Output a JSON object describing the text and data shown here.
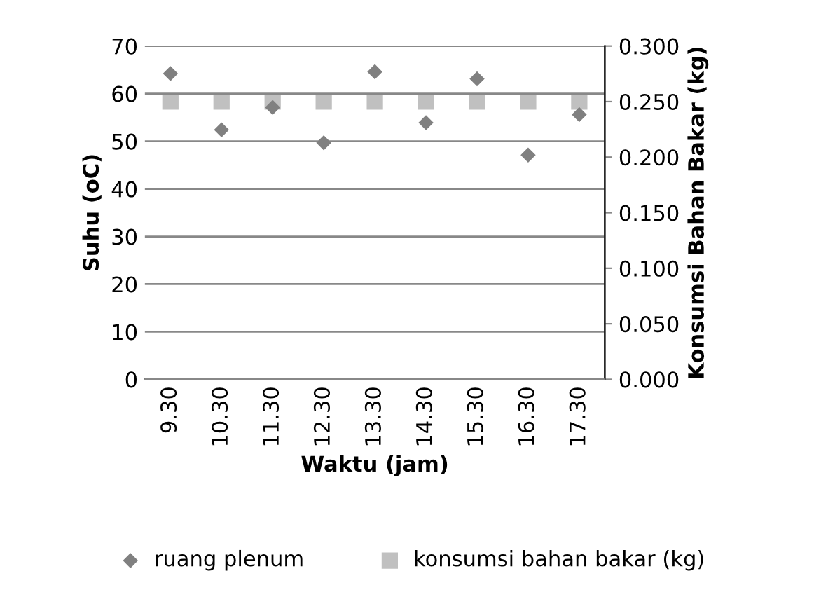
{
  "chart_data": {
    "type": "scatter",
    "xlabel": "Waktu (jam)",
    "ylabel": "Suhu (oC)",
    "y2label": "Konsumsi Bahan Bakar (kg)",
    "categories": [
      "9.30",
      "10.30",
      "11.30",
      "12.30",
      "13.30",
      "14.30",
      "15.30",
      "16.30",
      "17.30"
    ],
    "series": [
      {
        "name": "ruang plenum",
        "color": "#808080",
        "marker": "diamond",
        "values": [
          64.2,
          52.4,
          57.1,
          49.7,
          64.6,
          53.9,
          63.1,
          47.1,
          55.6
        ]
      },
      {
        "name": "konsumsi bahan bakar (kg)",
        "color": "#c0c0c0",
        "marker": "square",
        "axis": "y2",
        "values": [
          0.25,
          0.25,
          0.25,
          0.25,
          0.25,
          0.25,
          0.25,
          0.25,
          0.25
        ]
      }
    ],
    "ylim": [
      0,
      70
    ],
    "yticks": [
      0,
      10,
      20,
      30,
      40,
      50,
      60,
      70
    ],
    "y2lim": [
      0,
      0.3
    ],
    "y2ticks": [
      {
        "value": 0,
        "label": "0.000"
      },
      {
        "value": 0.05,
        "label": "0.050"
      },
      {
        "value": 0.1,
        "label": "0.100"
      },
      {
        "value": 0.15,
        "label": "0.150"
      },
      {
        "value": 0.2,
        "label": "0.200"
      },
      {
        "value": 0.25,
        "label": "0.250"
      },
      {
        "value": 0.3,
        "label": "0.300"
      }
    ],
    "grid": "y",
    "legend": "bottom"
  }
}
